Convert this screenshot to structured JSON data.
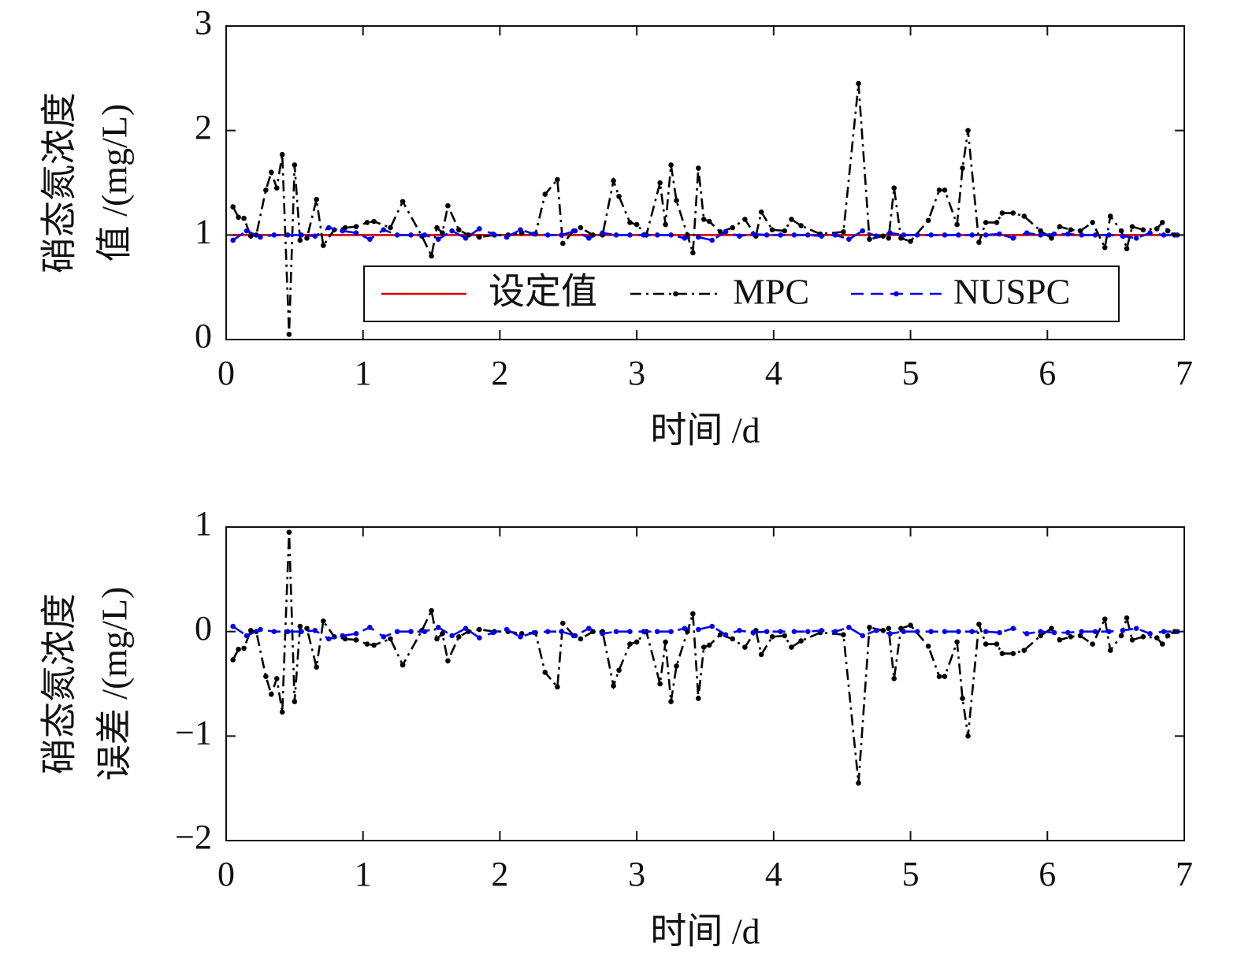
{
  "chart_data": [
    {
      "type": "line",
      "ylabel": [
        "硝态氮浓度",
        "值 /(mg/L)"
      ],
      "xlabel": "时间 /d",
      "xlim": [
        0,
        7
      ],
      "xticks": [
        0,
        1,
        2,
        3,
        4,
        5,
        6,
        7
      ],
      "ylim": [
        0,
        3
      ],
      "yticks": [
        0,
        1,
        2,
        3
      ],
      "legend": "lower right",
      "series": [
        {
          "name": "设定值",
          "color": "#d40000",
          "style": "solid",
          "x": [
            0.05,
            6.93
          ],
          "values": [
            1,
            1
          ]
        },
        {
          "name": "MPC",
          "color": "#000000",
          "style": "dashdot",
          "x": [
            0.05,
            0.09,
            0.13,
            0.18,
            0.22,
            0.29,
            0.33,
            0.37,
            0.41,
            0.46,
            0.5,
            0.54,
            0.59,
            0.66,
            0.71,
            0.79,
            0.87,
            0.95,
            1.03,
            1.08,
            1.2,
            1.29,
            1.43,
            1.5,
            1.54,
            1.58,
            1.62,
            1.7,
            1.77,
            1.85,
            1.96,
            2.06,
            2.16,
            2.26,
            2.33,
            2.42,
            2.46,
            2.54,
            2.59,
            2.68,
            2.75,
            2.83,
            2.87,
            2.95,
            3.0,
            3.07,
            3.17,
            3.21,
            3.25,
            3.29,
            3.37,
            3.41,
            3.45,
            3.49,
            3.53,
            3.61,
            3.7,
            3.79,
            3.87,
            3.91,
            3.99,
            4.08,
            4.13,
            4.2,
            4.34,
            4.51,
            4.62,
            4.7,
            4.8,
            4.84,
            4.88,
            4.93,
            5.0,
            5.13,
            5.21,
            5.25,
            5.34,
            5.38,
            5.42,
            5.5,
            5.55,
            5.63,
            5.67,
            5.75,
            5.83,
            5.95,
            6.03,
            6.09,
            6.17,
            6.24,
            6.33,
            6.42,
            6.46,
            6.54,
            6.58,
            6.62,
            6.7,
            6.8,
            6.84,
            6.88,
            6.93
          ],
          "values": [
            1.27,
            1.17,
            1.16,
            0.99,
            1.0,
            1.43,
            1.6,
            1.45,
            1.77,
            0.05,
            1.67,
            0.95,
            0.97,
            1.34,
            0.9,
            1.05,
            1.07,
            1.08,
            1.12,
            1.13,
            1.07,
            1.32,
            0.99,
            0.8,
            1.07,
            1.02,
            1.28,
            1.05,
            1.0,
            0.98,
            1.0,
            1.0,
            1.02,
            1.01,
            1.39,
            1.53,
            0.92,
            1.04,
            1.07,
            1.0,
            1.0,
            1.52,
            1.37,
            1.12,
            1.1,
            1.0,
            1.5,
            1.1,
            1.67,
            1.33,
            1.0,
            0.83,
            1.64,
            1.15,
            1.13,
            1.03,
            1.07,
            1.15,
            0.99,
            1.22,
            1.05,
            1.04,
            1.15,
            1.09,
            1.01,
            1.03,
            2.45,
            0.96,
            0.99,
            0.97,
            1.45,
            0.97,
            0.94,
            1.14,
            1.43,
            1.43,
            1.1,
            1.64,
            2.0,
            0.93,
            1.12,
            1.12,
            1.21,
            1.21,
            1.18,
            1.04,
            0.97,
            1.08,
            1.05,
            1.04,
            1.12,
            0.88,
            1.18,
            1.04,
            0.87,
            1.08,
            1.05,
            1.06,
            1.12,
            1.04,
            1.0
          ]
        },
        {
          "name": "NUSPC",
          "color": "#0000ee",
          "style": "dashed",
          "x": [
            0.05,
            0.15,
            0.25,
            0.35,
            0.45,
            0.55,
            0.65,
            0.75,
            0.85,
            0.95,
            1.05,
            1.15,
            1.25,
            1.35,
            1.45,
            1.55,
            1.65,
            1.75,
            1.85,
            1.95,
            2.05,
            2.15,
            2.25,
            2.35,
            2.45,
            2.55,
            2.65,
            2.75,
            2.85,
            2.95,
            3.05,
            3.15,
            3.25,
            3.35,
            3.45,
            3.55,
            3.65,
            3.75,
            3.85,
            3.95,
            4.05,
            4.15,
            4.25,
            4.35,
            4.45,
            4.55,
            4.65,
            4.75,
            4.85,
            4.95,
            5.05,
            5.15,
            5.25,
            5.35,
            5.45,
            5.55,
            5.65,
            5.75,
            5.85,
            5.95,
            6.05,
            6.15,
            6.25,
            6.35,
            6.45,
            6.55,
            6.65,
            6.75,
            6.85,
            6.95
          ],
          "values": [
            0.95,
            1.04,
            0.98,
            1.0,
            1.0,
            1.0,
            0.99,
            1.07,
            1.04,
            1.02,
            0.96,
            1.05,
            1.0,
            1.0,
            1.0,
            0.96,
            1.04,
            0.97,
            1.06,
            1.01,
            0.98,
            1.05,
            1.01,
            1.0,
            1.0,
            1.04,
            0.97,
            1.02,
            1.0,
            1.0,
            1.0,
            1.0,
            1.0,
            0.97,
            0.98,
            0.95,
            1.03,
            0.99,
            1.01,
            1.0,
            1.0,
            1.0,
            1.0,
            0.99,
            1.0,
            0.96,
            1.04,
            0.99,
            1.02,
            1.0,
            1.0,
            1.0,
            1.0,
            1.0,
            1.0,
            1.0,
            1.01,
            0.97,
            1.02,
            1.0,
            1.01,
            1.01,
            1.0,
            1.0,
            1.0,
            0.99,
            0.97,
            1.02,
            1.0,
            1.0
          ]
        }
      ]
    },
    {
      "type": "line",
      "ylabel": [
        "硝态氮浓度",
        "误差 /(mg/L)"
      ],
      "xlabel": "时间 /d",
      "xlim": [
        0,
        7
      ],
      "xticks": [
        0,
        1,
        2,
        3,
        4,
        5,
        6,
        7
      ],
      "ylim": [
        -2,
        1
      ],
      "yticks": [
        {
          "value": -2,
          "label": "−2"
        },
        {
          "value": -1,
          "label": "−1"
        },
        0,
        1
      ],
      "series": [
        {
          "name": "MPC",
          "color": "#000000",
          "style": "dashdot",
          "x": [
            0.05,
            0.09,
            0.13,
            0.18,
            0.22,
            0.29,
            0.33,
            0.37,
            0.41,
            0.46,
            0.5,
            0.54,
            0.59,
            0.66,
            0.71,
            0.79,
            0.87,
            0.95,
            1.03,
            1.08,
            1.2,
            1.29,
            1.43,
            1.5,
            1.54,
            1.58,
            1.62,
            1.7,
            1.77,
            1.85,
            1.96,
            2.06,
            2.16,
            2.26,
            2.33,
            2.42,
            2.46,
            2.54,
            2.59,
            2.68,
            2.75,
            2.83,
            2.87,
            2.95,
            3.0,
            3.07,
            3.17,
            3.21,
            3.25,
            3.29,
            3.37,
            3.41,
            3.45,
            3.49,
            3.53,
            3.61,
            3.7,
            3.79,
            3.87,
            3.91,
            3.99,
            4.08,
            4.13,
            4.2,
            4.34,
            4.51,
            4.62,
            4.7,
            4.8,
            4.84,
            4.88,
            4.93,
            5.0,
            5.13,
            5.21,
            5.25,
            5.34,
            5.38,
            5.42,
            5.5,
            5.55,
            5.63,
            5.67,
            5.75,
            5.83,
            5.95,
            6.03,
            6.09,
            6.17,
            6.24,
            6.33,
            6.42,
            6.46,
            6.54,
            6.58,
            6.62,
            6.7,
            6.8,
            6.84,
            6.88,
            6.93
          ],
          "values": [
            -0.27,
            -0.17,
            -0.16,
            0.01,
            0,
            -0.43,
            -0.6,
            -0.45,
            -0.77,
            0.95,
            -0.67,
            0.05,
            0.03,
            -0.34,
            0.1,
            -0.05,
            -0.07,
            -0.08,
            -0.12,
            -0.13,
            -0.07,
            -0.32,
            0.01,
            0.2,
            -0.07,
            -0.02,
            -0.28,
            -0.05,
            0,
            0.02,
            0,
            0,
            -0.02,
            -0.01,
            -0.39,
            -0.53,
            0.08,
            -0.04,
            -0.07,
            0,
            0,
            -0.52,
            -0.37,
            -0.12,
            -0.1,
            0,
            -0.5,
            -0.1,
            -0.67,
            -0.33,
            0,
            0.17,
            -0.64,
            -0.15,
            -0.13,
            -0.03,
            -0.07,
            -0.15,
            0.01,
            -0.22,
            -0.05,
            -0.04,
            -0.15,
            -0.09,
            -0.01,
            -0.03,
            -1.45,
            0.04,
            0.01,
            0.03,
            -0.45,
            0.03,
            0.06,
            -0.14,
            -0.43,
            -0.43,
            -0.1,
            -0.64,
            -1,
            0.07,
            -0.12,
            -0.12,
            -0.21,
            -0.21,
            -0.18,
            -0.04,
            0.03,
            -0.08,
            -0.05,
            -0.04,
            -0.12,
            0.12,
            -0.18,
            -0.04,
            0.13,
            -0.08,
            -0.05,
            -0.06,
            -0.12,
            -0.04,
            0
          ]
        },
        {
          "name": "NUSPC",
          "color": "#0000ee",
          "style": "dashed",
          "x": [
            0.05,
            0.15,
            0.25,
            0.35,
            0.45,
            0.55,
            0.65,
            0.75,
            0.85,
            0.95,
            1.05,
            1.15,
            1.25,
            1.35,
            1.45,
            1.55,
            1.65,
            1.75,
            1.85,
            1.95,
            2.05,
            2.15,
            2.25,
            2.35,
            2.45,
            2.55,
            2.65,
            2.75,
            2.85,
            2.95,
            3.05,
            3.15,
            3.25,
            3.35,
            3.45,
            3.55,
            3.65,
            3.75,
            3.85,
            3.95,
            4.05,
            4.15,
            4.25,
            4.35,
            4.45,
            4.55,
            4.65,
            4.75,
            4.85,
            4.95,
            5.05,
            5.15,
            5.25,
            5.35,
            5.45,
            5.55,
            5.65,
            5.75,
            5.85,
            5.95,
            6.05,
            6.15,
            6.25,
            6.35,
            6.45,
            6.55,
            6.65,
            6.75,
            6.85,
            6.95
          ],
          "values": [
            0.05,
            -0.04,
            0.02,
            0,
            0,
            0,
            0.01,
            -0.07,
            -0.04,
            -0.02,
            0.04,
            -0.05,
            0,
            0,
            0,
            0.04,
            -0.04,
            0.03,
            -0.06,
            -0.01,
            0.02,
            -0.05,
            -0.01,
            0,
            0,
            -0.04,
            0.03,
            -0.02,
            0,
            0,
            0,
            0,
            0,
            0.03,
            0.02,
            0.05,
            -0.03,
            0.01,
            -0.01,
            0,
            0,
            0,
            0,
            0.01,
            0,
            0.04,
            -0.04,
            0.01,
            -0.02,
            0,
            0,
            0,
            0,
            0,
            0,
            0,
            -0.01,
            0.03,
            -0.02,
            0,
            -0.01,
            -0.01,
            0,
            0,
            0,
            0.01,
            0.03,
            -0.02,
            0,
            0
          ]
        }
      ]
    }
  ]
}
